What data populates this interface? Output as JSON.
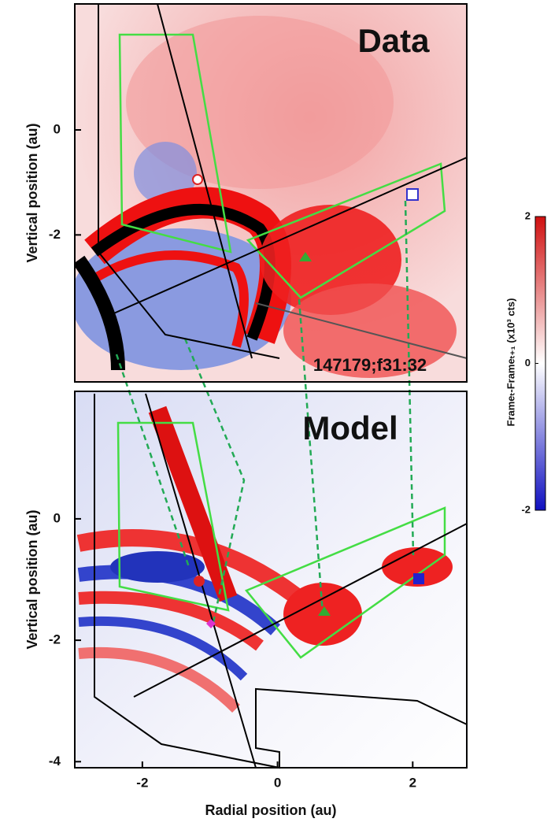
{
  "chart_data": [
    {
      "type": "heatmap",
      "annotation": "Data",
      "id_label": "147179;f31:32",
      "ylabel": "Vertical position (au)",
      "xlim": [
        -3.0,
        2.8
      ],
      "ylim": [
        -4.8,
        2.4
      ],
      "yticks": [
        0,
        -2
      ]
    },
    {
      "type": "heatmap",
      "annotation": "Model",
      "ylabel": "Vertical position (au)",
      "xlabel": "Radial position (au)",
      "xlim": [
        -3.0,
        2.8
      ],
      "ylim": [
        -4.1,
        2.1
      ],
      "yticks": [
        0,
        -2,
        -4
      ],
      "xticks": [
        -2,
        0,
        2
      ]
    },
    {
      "type": "colorbar",
      "label": "Frameₜ-Frameₜ₊₁ (x10³ cts)",
      "clim": [
        -2,
        2
      ],
      "ticks": [
        2,
        0,
        -2
      ],
      "colors": [
        "#1010c0",
        "#ffffff",
        "#d01010"
      ]
    }
  ]
}
